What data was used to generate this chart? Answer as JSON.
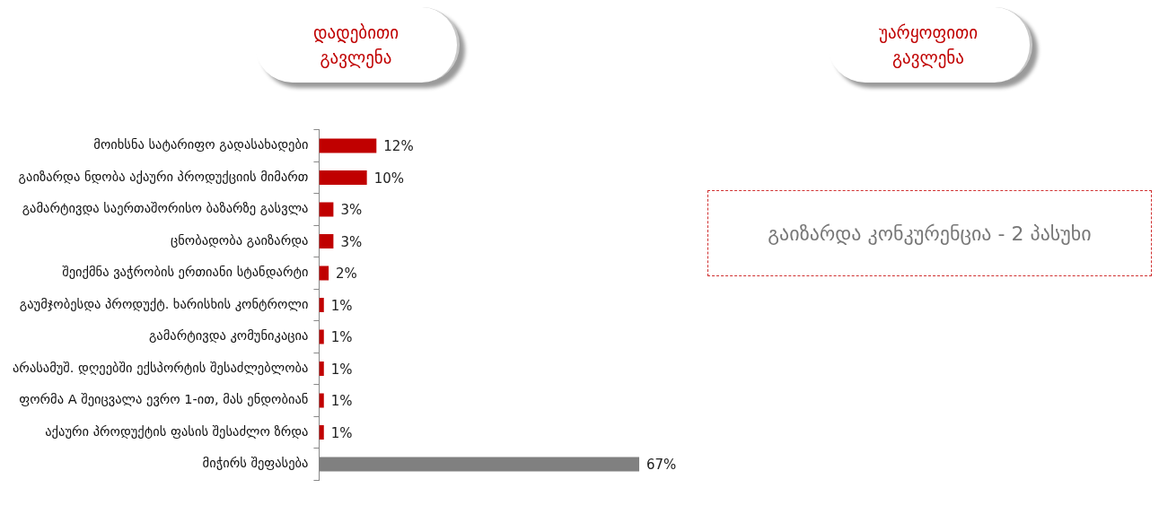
{
  "chart_data": [
    {
      "type": "bar",
      "title": "დადებითი\nგავლენა",
      "orientation": "horizontal",
      "tick_labels": "y",
      "categories": [
        "მოიხსნა სატარიფო გადასახადები",
        "გაიზარდა ნდობა აქაური პროდუქციის მიმართ",
        "გამარტივდა საერთაშორისო ბაზარზე გასვლა",
        "ცნობადობა გაიზარდა",
        "შეიქმნა ვაჭრობის ერთიანი სტანდარტი",
        "გაუმჯობესდა პროდუქტ. ხარისხის კონტროლი",
        "გამარტივდა კომუნიკაცია",
        "არასამუშ. დღეებში ექსპორტის შესაძლებლობა",
        "ფორმა A შეიცვალა ევრო 1-ით, მას ენდობიან",
        "აქაური პროდუქტის ფასის შესაძლო ზრდა",
        "მიჭირს შეფასება"
      ],
      "values": [
        12,
        10,
        3,
        3,
        2,
        1,
        1,
        1,
        1,
        1,
        67
      ],
      "value_labels": [
        "12%",
        "10%",
        "3%",
        "3%",
        "2%",
        "1%",
        "1%",
        "1%",
        "1%",
        "1%",
        "67%"
      ],
      "colors": [
        "#c00000",
        "#c00000",
        "#c00000",
        "#c00000",
        "#c00000",
        "#c00000",
        "#c00000",
        "#c00000",
        "#c00000",
        "#c00000",
        "#808080"
      ]
    },
    {
      "type": "other",
      "title": "უარყოფითი\nგავლენა",
      "annotations": [
        "გაიზარდა კონკურენცია - 2 პასუხი"
      ]
    }
  ]
}
